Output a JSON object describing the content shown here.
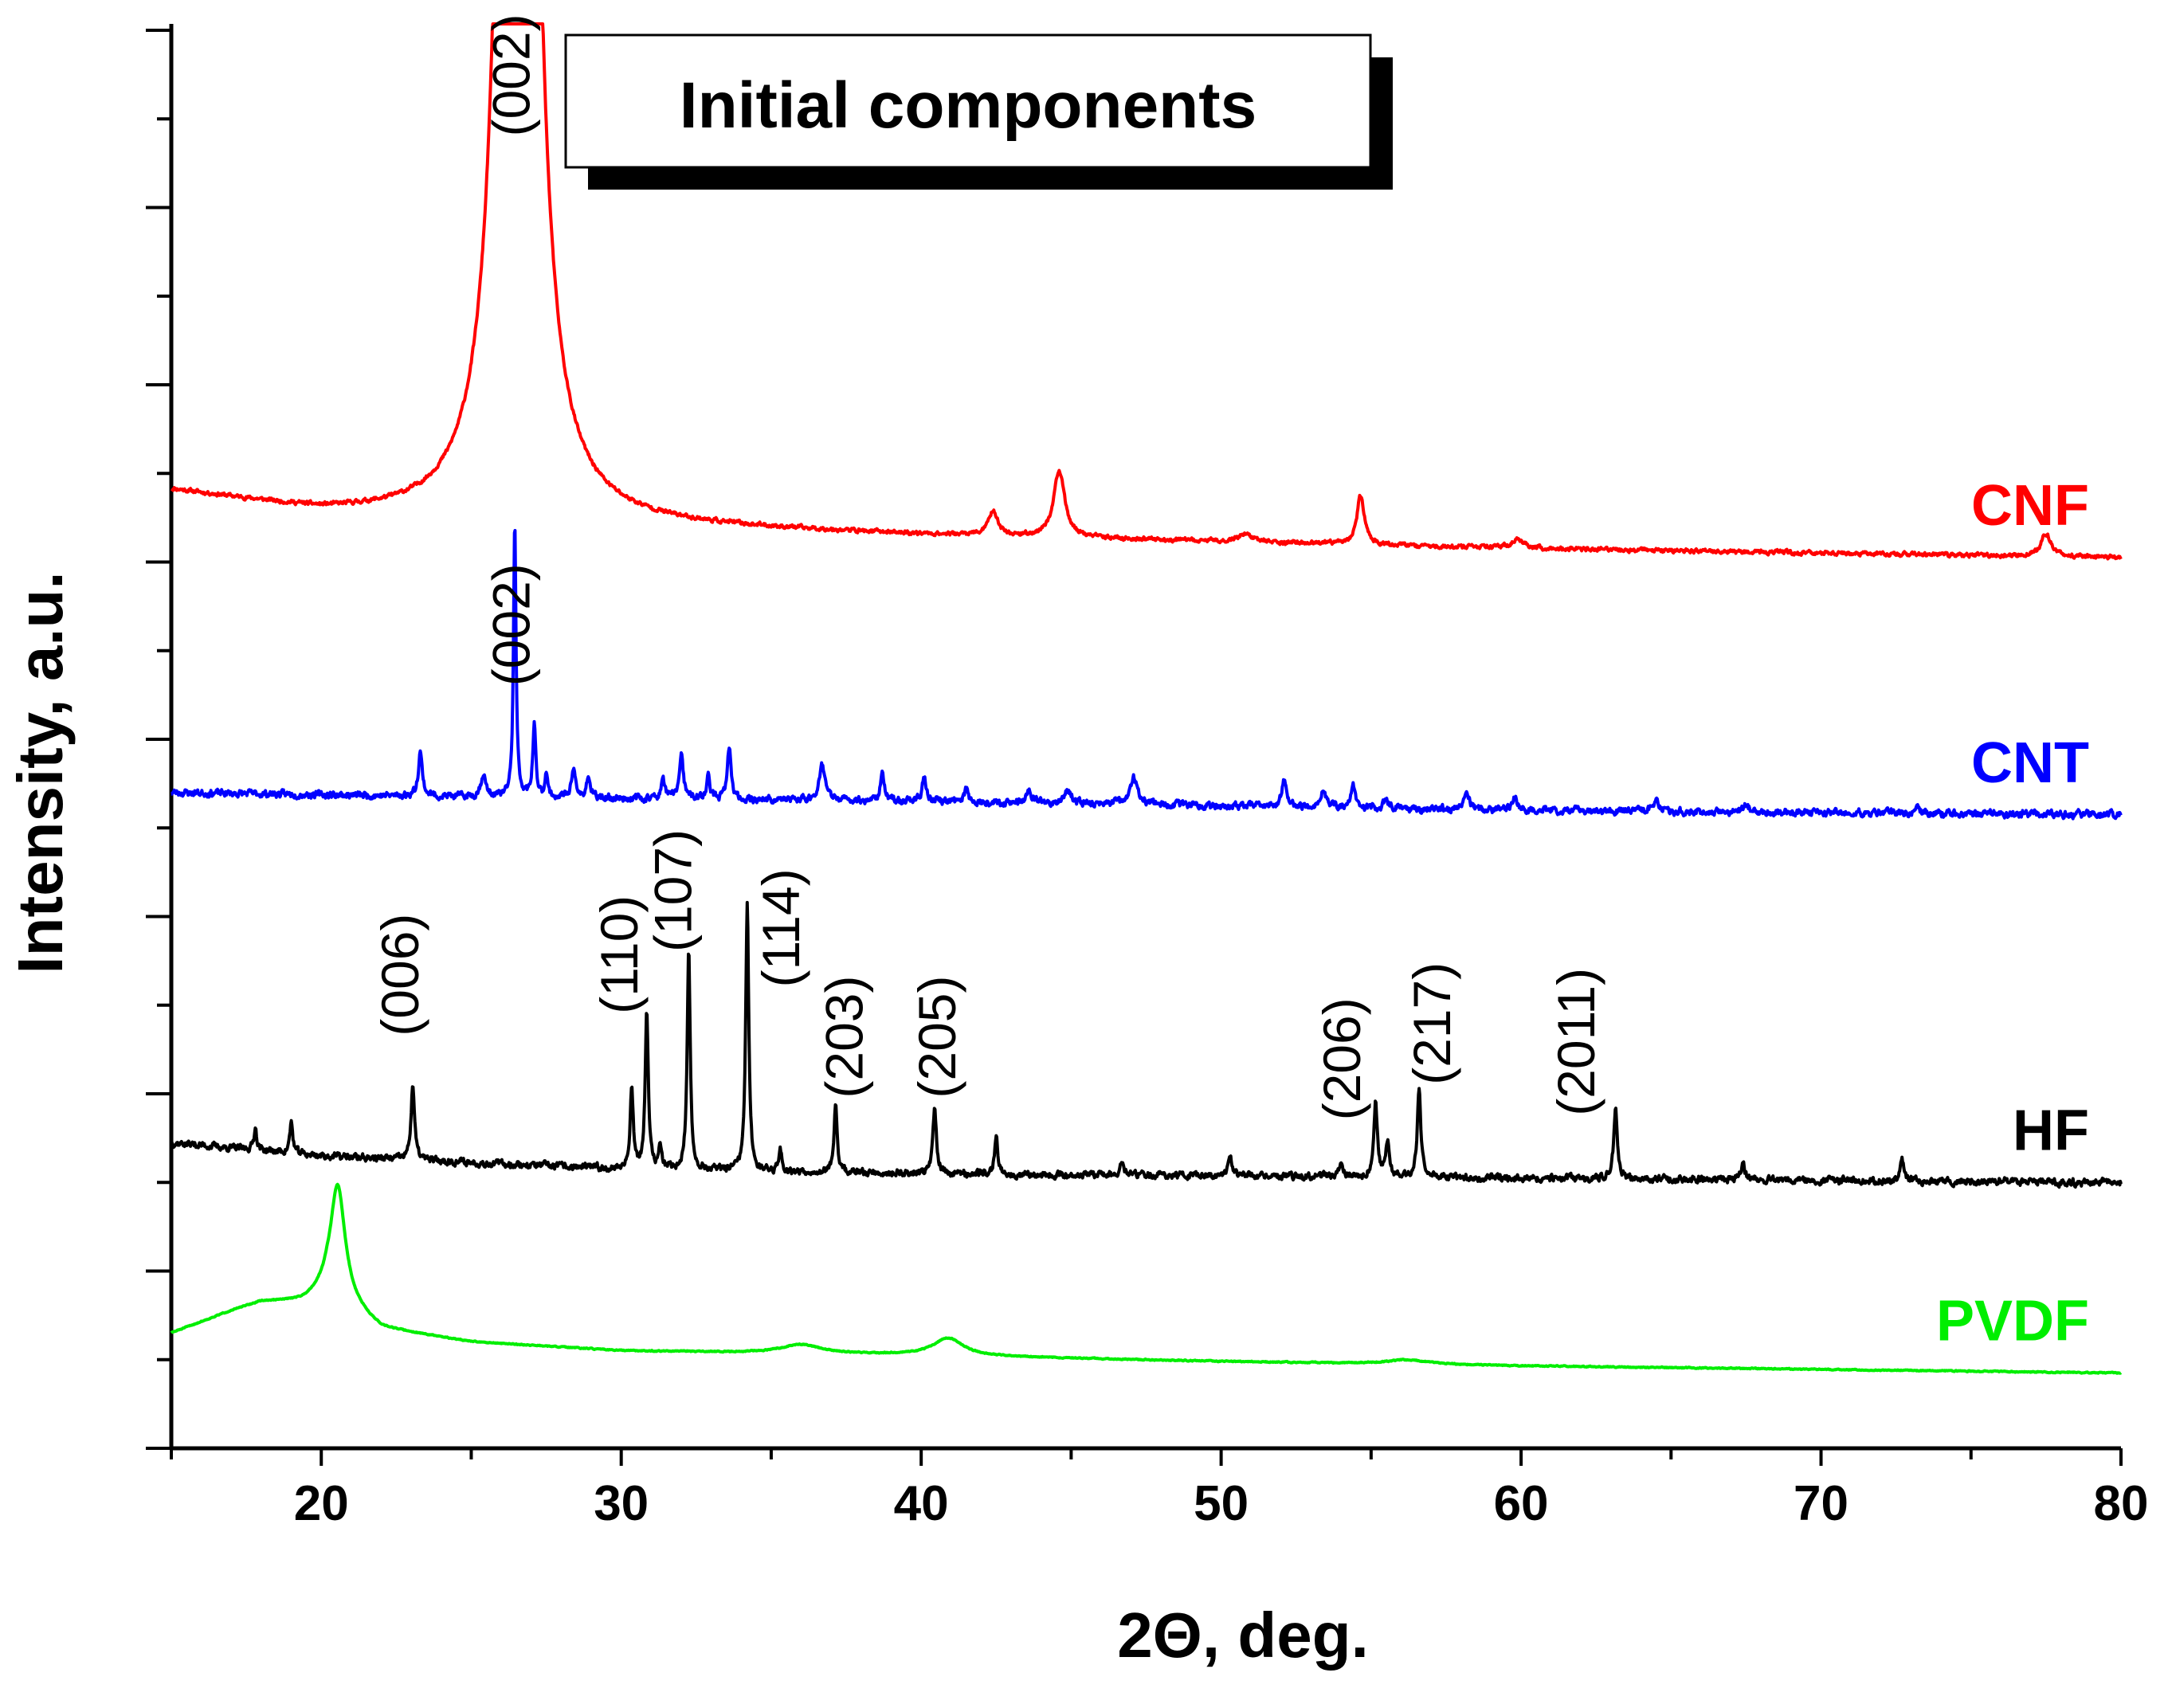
{
  "chart_data": {
    "type": "line",
    "title": "Initial components",
    "xlabel": "2Θ, deg.",
    "ylabel": "Intensity, a.u.",
    "xlim": [
      15,
      80
    ],
    "ylim": [
      0,
      16
    ],
    "x_ticks": [
      20,
      30,
      40,
      50,
      60,
      70,
      80
    ],
    "y_tick_labels": "none",
    "series": [
      {
        "name": "CNF",
        "color": "#ff0000",
        "noise": 0.04,
        "seed": 11,
        "baseline": [
          [
            15,
            10.8
          ],
          [
            20,
            10.55
          ],
          [
            25,
            10.45
          ],
          [
            30,
            10.4
          ],
          [
            40,
            10.3
          ],
          [
            60,
            10.15
          ],
          [
            80,
            10.05
          ]
        ],
        "peaks": [
          [
            26.55,
            50,
            0.3,
            "clip"
          ],
          [
            42.4,
            0.28,
            0.18
          ],
          [
            44.6,
            0.75,
            0.22
          ],
          [
            50.8,
            0.09,
            0.3
          ],
          [
            54.65,
            0.55,
            0.15
          ],
          [
            59.9,
            0.1,
            0.25
          ],
          [
            77.5,
            0.26,
            0.2
          ]
        ]
      },
      {
        "name": "CNT",
        "color": "#0000ff",
        "noise": 0.07,
        "seed": 23,
        "baseline": [
          [
            15,
            7.4
          ],
          [
            25,
            7.35
          ],
          [
            40,
            7.3
          ],
          [
            60,
            7.2
          ],
          [
            80,
            7.15
          ]
        ],
        "peaks": [
          [
            23.3,
            0.5,
            0.08
          ],
          [
            25.4,
            0.25,
            0.1
          ],
          [
            26.45,
            3.1,
            0.05
          ],
          [
            27.1,
            0.8,
            0.06
          ],
          [
            27.5,
            0.3,
            0.05
          ],
          [
            28.4,
            0.35,
            0.07
          ],
          [
            28.9,
            0.25,
            0.07
          ],
          [
            31.4,
            0.2,
            0.08
          ],
          [
            32.0,
            0.5,
            0.08
          ],
          [
            32.9,
            0.25,
            0.07
          ],
          [
            33.6,
            0.6,
            0.07
          ],
          [
            36.7,
            0.4,
            0.12
          ],
          [
            38.7,
            0.3,
            0.08
          ],
          [
            40.1,
            0.28,
            0.08
          ],
          [
            41.5,
            0.15,
            0.08
          ],
          [
            43.6,
            0.15,
            0.1
          ],
          [
            44.9,
            0.14,
            0.15
          ],
          [
            47.1,
            0.3,
            0.15
          ],
          [
            52.1,
            0.3,
            0.1
          ],
          [
            53.4,
            0.2,
            0.1
          ],
          [
            54.4,
            0.25,
            0.08
          ],
          [
            55.5,
            0.13,
            0.08
          ],
          [
            58.2,
            0.18,
            0.1
          ],
          [
            59.8,
            0.14,
            0.1
          ],
          [
            64.5,
            0.12,
            0.12
          ],
          [
            67.5,
            0.08,
            0.1
          ],
          [
            73.2,
            0.08,
            0.1
          ]
        ]
      },
      {
        "name": "HF",
        "color": "#000000",
        "noise": 0.07,
        "seed": 37,
        "baseline": [
          [
            15,
            3.45
          ],
          [
            20,
            3.3
          ],
          [
            30,
            3.15
          ],
          [
            40,
            3.1
          ],
          [
            60,
            3.05
          ],
          [
            80,
            3.0
          ]
        ],
        "peaks": [
          [
            17.8,
            0.25,
            0.06
          ],
          [
            19.0,
            0.35,
            0.06
          ],
          [
            23.05,
            0.85,
            0.07
          ],
          [
            30.35,
            0.95,
            0.06
          ],
          [
            30.85,
            1.8,
            0.06
          ],
          [
            31.3,
            0.25,
            0.06
          ],
          [
            32.25,
            2.45,
            0.06
          ],
          [
            34.2,
            3.0,
            0.06
          ],
          [
            35.3,
            0.25,
            0.06
          ],
          [
            37.15,
            0.75,
            0.06
          ],
          [
            40.45,
            0.75,
            0.07
          ],
          [
            42.5,
            0.45,
            0.06
          ],
          [
            46.7,
            0.15,
            0.07
          ],
          [
            50.3,
            0.25,
            0.07
          ],
          [
            54.0,
            0.2,
            0.07
          ],
          [
            55.15,
            0.85,
            0.07
          ],
          [
            55.55,
            0.4,
            0.07
          ],
          [
            56.6,
            1.0,
            0.07
          ],
          [
            63.15,
            0.8,
            0.07
          ],
          [
            67.4,
            0.18,
            0.07
          ],
          [
            72.7,
            0.25,
            0.07
          ]
        ]
      },
      {
        "name": "PVDF",
        "color": "#00ee00",
        "noise": 0.01,
        "seed": 51,
        "baseline": [
          [
            15,
            1.3
          ],
          [
            17,
            1.55
          ],
          [
            18,
            1.65
          ],
          [
            19.4,
            1.65
          ],
          [
            20.2,
            1.75
          ],
          [
            22,
            1.35
          ],
          [
            25,
            1.2
          ],
          [
            30,
            1.1
          ],
          [
            40,
            1.05
          ],
          [
            50,
            0.98
          ],
          [
            60,
            0.93
          ],
          [
            80,
            0.85
          ]
        ],
        "peaks": [
          [
            20.55,
            1.3,
            0.3
          ],
          [
            36.0,
            0.1,
            0.8
          ],
          [
            40.9,
            0.2,
            0.6
          ],
          [
            56.2,
            0.05,
            0.8
          ]
        ]
      }
    ],
    "annotations": [
      {
        "text": "(002)",
        "x": 26.3,
        "y": 14.8
      },
      {
        "text": "(002)",
        "x": 26.3,
        "y": 8.6
      },
      {
        "text": "(006)",
        "x": 22.6,
        "y": 4.65
      },
      {
        "text": "(110)",
        "x": 29.9,
        "y": 4.9
      },
      {
        "text": "(107)",
        "x": 31.7,
        "y": 5.6
      },
      {
        "text": "(114)",
        "x": 35.3,
        "y": 5.2
      },
      {
        "text": "(203)",
        "x": 37.4,
        "y": 3.95
      },
      {
        "text": "(205)",
        "x": 40.5,
        "y": 3.95
      },
      {
        "text": "(206)",
        "x": 54.0,
        "y": 3.7
      },
      {
        "text": "(217)",
        "x": 57.0,
        "y": 4.1
      },
      {
        "text": "(2011)",
        "x": 61.8,
        "y": 3.75
      }
    ]
  }
}
